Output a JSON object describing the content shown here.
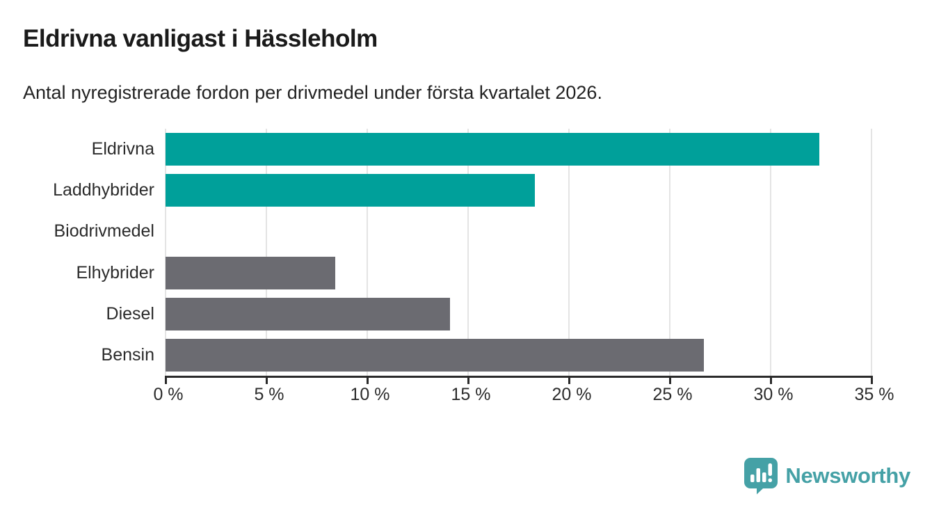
{
  "header": {
    "title": "Eldrivna vanligast i Hässleholm",
    "subtitle": "Antal nyregistrerade fordon per drivmedel under första kvartalet 2026."
  },
  "colors": {
    "teal_bar": "#00a09a",
    "gray_bar": "#6b6b71",
    "gridline": "#e4e4e4",
    "axis": "#2b2b2b",
    "logo_teal": "#45a1a6"
  },
  "chart_data": {
    "type": "bar",
    "orientation": "horizontal",
    "title": "Eldrivna vanligast i Hässleholm",
    "subtitle": "Antal nyregistrerade fordon per drivmedel under första kvartalet 2026.",
    "categories": [
      "Eldrivna",
      "Laddhybrider",
      "Biodrivmedel",
      "Elhybrider",
      "Diesel",
      "Bensin"
    ],
    "values": [
      32.4,
      18.3,
      0,
      8.4,
      14.1,
      26.7
    ],
    "bar_colors": [
      "#00a09a",
      "#00a09a",
      "#00a09a",
      "#6b6b71",
      "#6b6b71",
      "#6b6b71"
    ],
    "unit": "%",
    "xlim": [
      0,
      35
    ],
    "x_ticks": [
      0,
      5,
      10,
      15,
      20,
      25,
      30,
      35
    ],
    "x_tick_labels": [
      "0 %",
      "5 %",
      "10 %",
      "15 %",
      "20 %",
      "25 %",
      "30 %",
      "35 %"
    ],
    "grid": true,
    "legend": "none"
  },
  "branding": {
    "logo_text": "Newsworthy",
    "logo_icon": "newsworthy-speech-bubble-bar-chart-icon"
  }
}
